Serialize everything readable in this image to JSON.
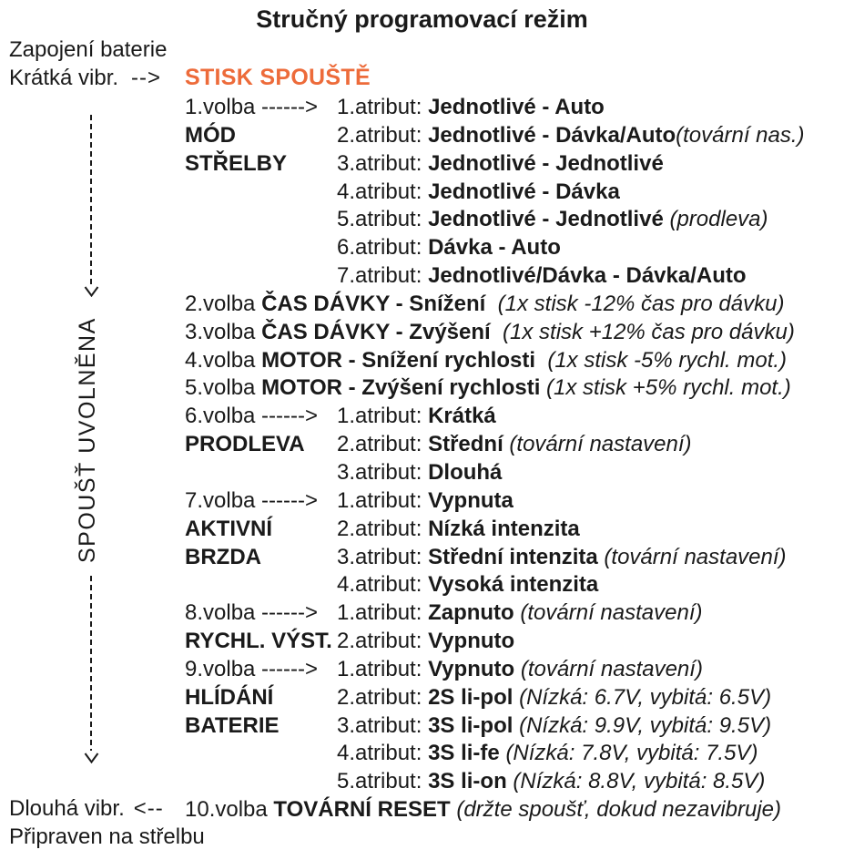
{
  "title": "Stručný programovací režim",
  "colors": {
    "accent_orange": "#ed6b3a",
    "ink": "#1a1a1a"
  },
  "left_rail": {
    "battery_connect": "Zapojení baterie",
    "short_vibration": "Krátká vibr.",
    "short_vibration_arrow": "-->",
    "trigger_released_vertical": "SPOUŠŤ UVOLNĚNA",
    "long_vibration": "Dlouhá vibr.",
    "long_vibration_arrow": "<--",
    "ready_to_fire": "Připraven na střelbu"
  },
  "trigger_press": "STISK SPOUŠTĚ",
  "lines": [
    {
      "c1": [
        [
          "1.volba ------>",
          "r"
        ]
      ],
      "c2": [
        [
          "1.atribut: ",
          "r"
        ],
        [
          "Jednotlivé - Auto",
          "b"
        ]
      ]
    },
    {
      "c1": [
        [
          "MÓD",
          "B"
        ]
      ],
      "c2": [
        [
          "2.atribut: ",
          "r"
        ],
        [
          "Jednotlivé - Dávka/Auto",
          "b"
        ],
        [
          "(tovární nas.)",
          "i"
        ]
      ]
    },
    {
      "c1": [
        [
          "STŘELBY",
          "B"
        ]
      ],
      "c2": [
        [
          "3.atribut: ",
          "r"
        ],
        [
          "Jednotlivé - Jednotlivé",
          "b"
        ]
      ]
    },
    {
      "c2": [
        [
          "4.atribut: ",
          "r"
        ],
        [
          "Jednotlivé - Dávka",
          "b"
        ]
      ]
    },
    {
      "c2": [
        [
          "5.atribut: ",
          "r"
        ],
        [
          "Jednotlivé - Jednotlivé",
          "b"
        ],
        [
          " ",
          "r"
        ],
        [
          "(prodleva)",
          "i"
        ]
      ]
    },
    {
      "c2": [
        [
          "6.atribut: ",
          "r"
        ],
        [
          "Dávka - Auto",
          "b"
        ]
      ]
    },
    {
      "c2": [
        [
          "7.atribut: ",
          "r"
        ],
        [
          "Jednotlivé/Dávka - Dávka/Auto",
          "b"
        ]
      ]
    },
    {
      "full": [
        [
          "2.volba ",
          "r"
        ],
        [
          "ČAS DÁVKY - Snížení",
          "b"
        ],
        [
          "  ",
          "r"
        ],
        [
          "(1x stisk -12% čas pro dávku)",
          "i"
        ]
      ]
    },
    {
      "full": [
        [
          "3.volba ",
          "r"
        ],
        [
          "ČAS DÁVKY - Zvýšení",
          "b"
        ],
        [
          "  ",
          "r"
        ],
        [
          "(1x stisk +12% čas pro dávku)",
          "i"
        ]
      ]
    },
    {
      "full": [
        [
          "4.volba ",
          "r"
        ],
        [
          "MOTOR - Snížení rychlosti",
          "b"
        ],
        [
          "  ",
          "r"
        ],
        [
          "(1x stisk -5% rychl. mot.)",
          "i"
        ]
      ]
    },
    {
      "full": [
        [
          "5.volba ",
          "r"
        ],
        [
          "MOTOR - Zvýšení rychlosti",
          "b"
        ],
        [
          " ",
          "r"
        ],
        [
          "(1x stisk +5% rychl. mot.)",
          "i"
        ]
      ]
    },
    {
      "c1": [
        [
          "6.volba ------>",
          "r"
        ]
      ],
      "c2": [
        [
          "1.atribut: ",
          "r"
        ],
        [
          "Krátká",
          "b"
        ]
      ]
    },
    {
      "c1": [
        [
          "PRODLEVA",
          "B"
        ]
      ],
      "c2": [
        [
          "2.atribut: ",
          "r"
        ],
        [
          "Střední",
          "b"
        ],
        [
          " ",
          "r"
        ],
        [
          "(tovární nastavení)",
          "i"
        ]
      ]
    },
    {
      "c2": [
        [
          "3.atribut: ",
          "r"
        ],
        [
          "Dlouhá",
          "b"
        ]
      ]
    },
    {
      "c1": [
        [
          "7.volba ------>",
          "r"
        ]
      ],
      "c2": [
        [
          "1.atribut: ",
          "r"
        ],
        [
          "Vypnuta",
          "b"
        ]
      ]
    },
    {
      "c1": [
        [
          "AKTIVNÍ",
          "B"
        ]
      ],
      "c2": [
        [
          "2.atribut: ",
          "r"
        ],
        [
          "Nízká intenzita",
          "b"
        ]
      ]
    },
    {
      "c1": [
        [
          "BRZDA",
          "B"
        ]
      ],
      "c2": [
        [
          "3.atribut: ",
          "r"
        ],
        [
          "Střední intenzita",
          "b"
        ],
        [
          " ",
          "r"
        ],
        [
          "(tovární nastavení)",
          "i"
        ]
      ]
    },
    {
      "c2": [
        [
          "4.atribut: ",
          "r"
        ],
        [
          "Vysoká intenzita",
          "b"
        ]
      ]
    },
    {
      "c1": [
        [
          "8.volba ------>",
          "r"
        ]
      ],
      "c2": [
        [
          "1.atribut: ",
          "r"
        ],
        [
          "Zapnuto",
          "b"
        ],
        [
          " ",
          "r"
        ],
        [
          "(tovární nastavení)",
          "i"
        ]
      ]
    },
    {
      "c1": [
        [
          "RYCHL. VÝST.",
          "B"
        ]
      ],
      "c2": [
        [
          "2.atribut: ",
          "r"
        ],
        [
          "Vypnuto",
          "b"
        ]
      ]
    },
    {
      "c1": [
        [
          "9.volba ------>",
          "r"
        ]
      ],
      "c2": [
        [
          "1.atribut: ",
          "r"
        ],
        [
          "Vypnuto",
          "b"
        ],
        [
          " ",
          "r"
        ],
        [
          "(tovární nastavení)",
          "i"
        ]
      ]
    },
    {
      "c1": [
        [
          "HLÍDÁNÍ",
          "B"
        ]
      ],
      "c2": [
        [
          "2.atribut: ",
          "r"
        ],
        [
          "2S li-pol",
          "b"
        ],
        [
          " ",
          "r"
        ],
        [
          "(Nízká: 6.7V, vybitá: 6.5V)",
          "i"
        ]
      ]
    },
    {
      "c1": [
        [
          "BATERIE",
          "B"
        ]
      ],
      "c2": [
        [
          "3.atribut: ",
          "r"
        ],
        [
          "3S li-pol",
          "b"
        ],
        [
          " ",
          "r"
        ],
        [
          "(Nízká: 9.9V, vybitá: 9.5V)",
          "i"
        ]
      ]
    },
    {
      "c2": [
        [
          "4.atribut: ",
          "r"
        ],
        [
          "3S li-fe",
          "b"
        ],
        [
          " ",
          "r"
        ],
        [
          "(Nízká: 7.8V, vybitá: 7.5V)",
          "i"
        ]
      ]
    },
    {
      "c2": [
        [
          "5.atribut: ",
          "r"
        ],
        [
          "3S li-on",
          "b"
        ],
        [
          " ",
          "r"
        ],
        [
          "(Nízká: 8.8V, vybitá: 8.5V)",
          "i"
        ]
      ]
    },
    {
      "full": [
        [
          "10.volba ",
          "r"
        ],
        [
          "TOVÁRNÍ RESET",
          "b"
        ],
        [
          " ",
          "r"
        ],
        [
          "(držte spoušť, dokud nezavibruje)",
          "i"
        ]
      ]
    }
  ]
}
